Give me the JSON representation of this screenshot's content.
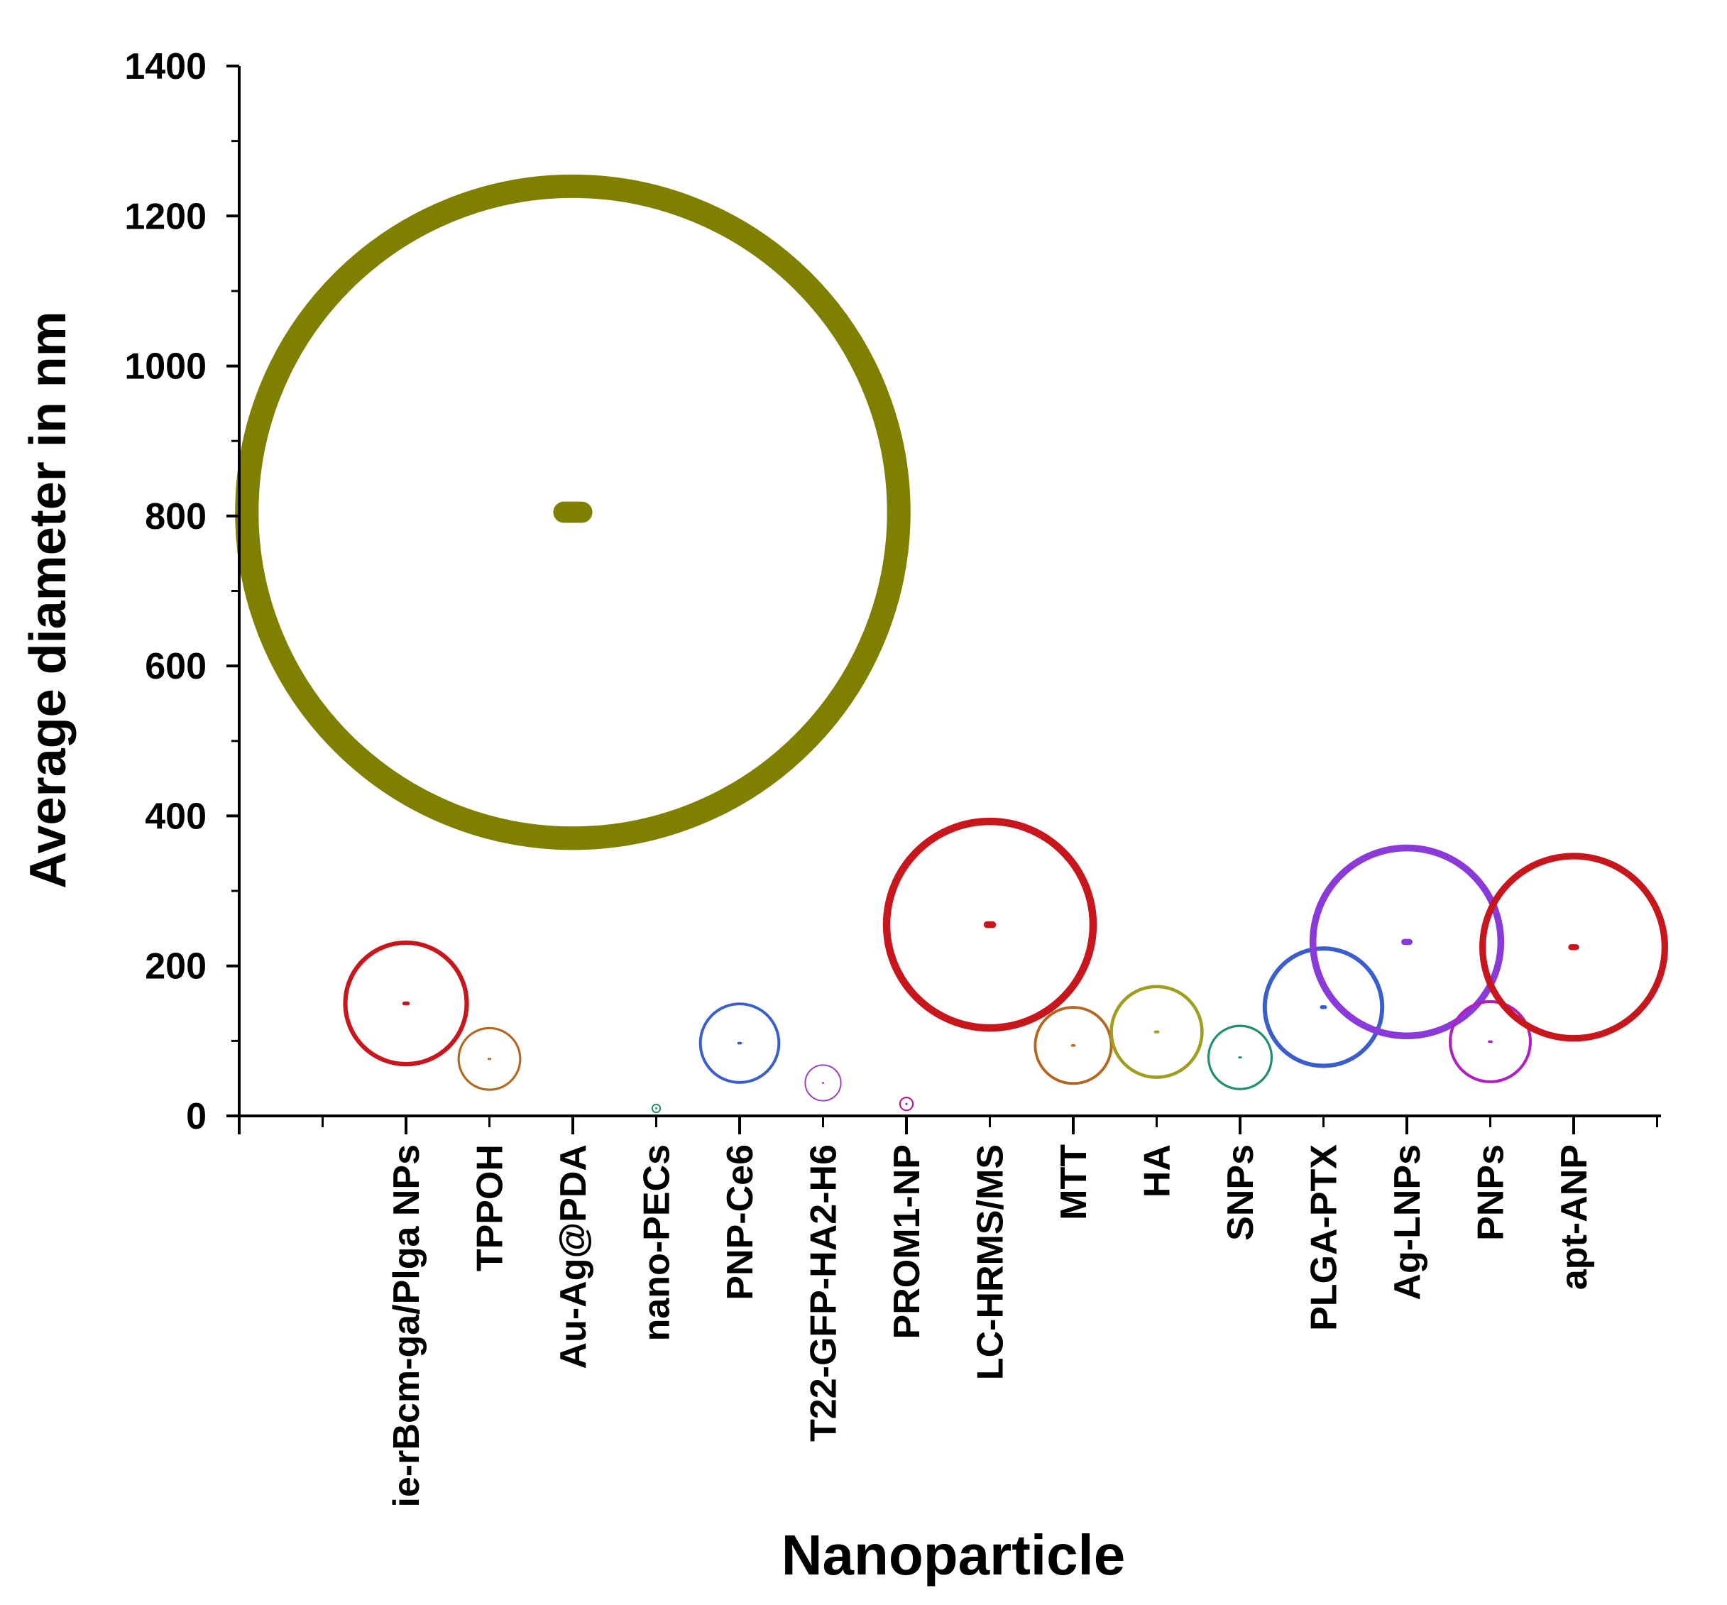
{
  "chart_data": {
    "type": "scatter",
    "subtype": "bubble",
    "xlabel": "Nanoparticle",
    "ylabel": "Average diameter in nm",
    "ylim": [
      0,
      1400
    ],
    "yticks": [
      0,
      200,
      400,
      600,
      800,
      1000,
      1200,
      1400
    ],
    "grid": false,
    "legend": "none",
    "points": [
      {
        "name": "ie-rBcm-ga/Plga NPs",
        "x": 2,
        "y": 150,
        "size": 150,
        "color": "#c8161d"
      },
      {
        "name": "TPPOH",
        "x": 3,
        "y": 76,
        "size": 76,
        "color": "#b5651d"
      },
      {
        "name": "Au-Ag@PDA",
        "x": 4,
        "y": 805,
        "size": 805,
        "color": "#808000"
      },
      {
        "name": "nano-PECs",
        "x": 5,
        "y": 10,
        "size": 10,
        "color": "#1f8f6f"
      },
      {
        "name": "PNP-Ce6",
        "x": 6,
        "y": 97,
        "size": 97,
        "color": "#3a5fcd"
      },
      {
        "name": "T22-GFP-HA2-H6",
        "x": 7,
        "y": 44,
        "size": 44,
        "color": "#9a40c0"
      },
      {
        "name": "PROM1-NP",
        "x": 8,
        "y": 16,
        "size": 16,
        "color": "#b0108a"
      },
      {
        "name": "LC-HRMS/MS",
        "x": 9,
        "y": 255,
        "size": 255,
        "color": "#c8161d"
      },
      {
        "name": "MTT",
        "x": 10,
        "y": 94,
        "size": 94,
        "color": "#b5651d"
      },
      {
        "name": "HA",
        "x": 11,
        "y": 112,
        "size": 112,
        "color": "#9f9f1f"
      },
      {
        "name": "SNPs",
        "x": 12,
        "y": 78,
        "size": 78,
        "color": "#1f8f6f"
      },
      {
        "name": "PLGA-PTX",
        "x": 13,
        "y": 145,
        "size": 145,
        "color": "#3a5fcd"
      },
      {
        "name": "Ag-LNPs",
        "x": 14,
        "y": 232,
        "size": 232,
        "color": "#8a3ad8"
      },
      {
        "name": "PNPs",
        "x": 15,
        "y": 99,
        "size": 99,
        "color": "#b020c0"
      },
      {
        "name": "apt-ANP",
        "x": 16,
        "y": 225,
        "size": 225,
        "color": "#c8161d"
      }
    ]
  }
}
